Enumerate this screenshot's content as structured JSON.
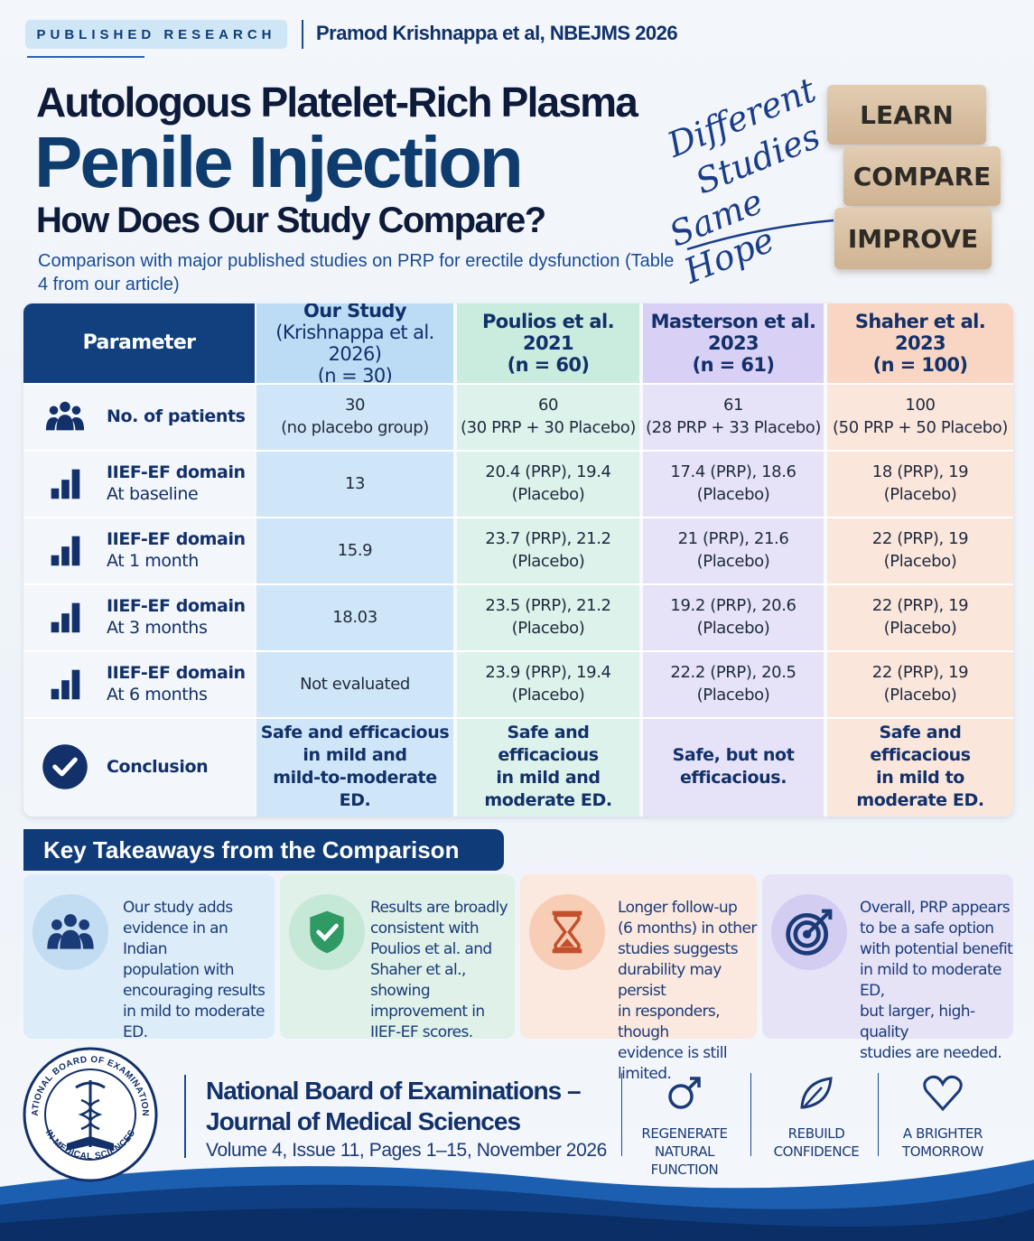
{
  "header": {
    "tag": "PUBLISHED RESEARCH",
    "author": "Pramod Krishnappa et al, NBEJMS 2026"
  },
  "title": {
    "line1": "Autologous Platelet-Rich Plasma",
    "line2": "Penile Injection",
    "line3": "How Does Our Study Compare?",
    "subtitle": "Comparison with major published studies on PRP for erectile dysfunction (Table 4 from our article)"
  },
  "script_text": [
    "Different",
    "Studies",
    "Same Hope"
  ],
  "blocks": [
    "LEARN",
    "COMPARE",
    "IMPROVE"
  ],
  "table": {
    "param_header": "Parameter",
    "columns": [
      {
        "l1": "Our Study",
        "l2": "(Krishnappa et al. 2026)",
        "l3": "(n = 30)",
        "color": "#cfe6f8",
        "hdr": "#bcdcf5"
      },
      {
        "l1": "Poulios et al.",
        "l2": "2021",
        "l3": "(n = 60)",
        "color": "#dcf2ea",
        "hdr": "#c9ecdf"
      },
      {
        "l1": "Masterson et al.",
        "l2": "2023",
        "l3": "(n = 61)",
        "color": "#e6e2f7",
        "hdr": "#d8d0f5"
      },
      {
        "l1": "Shaher et al.",
        "l2": "2023",
        "l3": "(n = 100)",
        "color": "#fbe6dc",
        "hdr": "#f9d6c4"
      }
    ],
    "rows": [
      {
        "icon": "people-icon",
        "title": "No. of patients",
        "sub": "",
        "cells": [
          [
            "30",
            "(no placebo group)"
          ],
          [
            "60",
            "(30 PRP + 30 Placebo)"
          ],
          [
            "61",
            "(28 PRP + 33 Placebo)"
          ],
          [
            "100",
            "(50 PRP + 50 Placebo)"
          ]
        ]
      },
      {
        "icon": "bar-chart-icon",
        "title": "IIEF-EF domain",
        "sub": "At baseline",
        "cells": [
          [
            "13",
            ""
          ],
          [
            "20.4 (PRP), 19.4",
            "(Placebo)"
          ],
          [
            "17.4 (PRP), 18.6",
            "(Placebo)"
          ],
          [
            "18 (PRP), 19",
            "(Placebo)"
          ]
        ]
      },
      {
        "icon": "bar-chart-icon",
        "title": "IIEF-EF domain",
        "sub": "At 1 month",
        "cells": [
          [
            "15.9",
            ""
          ],
          [
            "23.7 (PRP), 21.2",
            "(Placebo)"
          ],
          [
            "21 (PRP), 21.6",
            "(Placebo)"
          ],
          [
            "22 (PRP), 19",
            "(Placebo)"
          ]
        ]
      },
      {
        "icon": "bar-chart-icon",
        "title": "IIEF-EF domain",
        "sub": "At 3 months",
        "cells": [
          [
            "18.03",
            ""
          ],
          [
            "23.5 (PRP), 21.2",
            "(Placebo)"
          ],
          [
            "19.2 (PRP), 20.6",
            "(Placebo)"
          ],
          [
            "22 (PRP), 19",
            "(Placebo)"
          ]
        ]
      },
      {
        "icon": "bar-chart-icon",
        "title": "IIEF-EF domain",
        "sub": "At 6 months",
        "cells": [
          [
            "Not evaluated",
            ""
          ],
          [
            "23.9 (PRP), 19.4",
            "(Placebo)"
          ],
          [
            "22.2 (PRP), 20.5",
            "(Placebo)"
          ],
          [
            "22 (PRP), 19",
            "(Placebo)"
          ]
        ]
      },
      {
        "icon": "check-circle-icon",
        "title": "Conclusion",
        "sub": "",
        "cells": [
          [
            "Safe and efficacious",
            "in mild and",
            "mild-to-moderate ED."
          ],
          [
            "Safe and efficacious",
            "in mild and",
            "moderate ED."
          ],
          [
            "Safe, but not",
            "efficacious."
          ],
          [
            "Safe and efficacious",
            "in mild to",
            "moderate ED."
          ]
        ]
      }
    ]
  },
  "takeaways": {
    "title": "Key Takeaways from the Comparison",
    "cards": [
      {
        "icon": "people-icon",
        "bg": "#dcecf8",
        "iconbg": "#c2dcf2",
        "lines": [
          "Our study adds",
          "evidence in an Indian",
          "population with",
          "encouraging results",
          "in mild to moderate ED."
        ]
      },
      {
        "icon": "shield-check-icon",
        "bg": "#dff1e8",
        "iconbg": "#c6e8d7",
        "lines": [
          "Results are broadly",
          "consistent with",
          "Poulios et al. and",
          "Shaher et al., showing",
          "improvement in",
          "IIEF-EF scores."
        ]
      },
      {
        "icon": "hourglass-icon",
        "bg": "#fbe8de",
        "iconbg": "#f8cdb6",
        "lines": [
          "Longer follow-up",
          "(6 months) in other",
          "studies suggests",
          "durability may persist",
          "in responders, though",
          "evidence is still limited."
        ]
      },
      {
        "icon": "target-icon",
        "bg": "#e6e3f7",
        "iconbg": "#d4cdf2",
        "lines": [
          "Overall, PRP appears",
          "to be a safe option",
          "with potential benefit",
          "in mild to moderate ED,",
          "but larger, high-quality",
          "studies are needed."
        ]
      }
    ]
  },
  "footer": {
    "seal_top": "NATIONAL BOARD OF EXAMINATIONS",
    "seal_bottom": "IN MEDICAL SCIENCES",
    "journal_line1": "National Board of Examinations –",
    "journal_line2": "Journal of Medical Sciences",
    "volume": "Volume 4, Issue 11, Pages 1–15, November 2026",
    "features": [
      {
        "icon": "male-symbol-icon",
        "l1": "REGENERATE",
        "l2": "NATURAL FUNCTION"
      },
      {
        "icon": "leaf-icon",
        "l1": "REBUILD",
        "l2": "CONFIDENCE"
      },
      {
        "icon": "heart-icon",
        "l1": "A BRIGHTER",
        "l2": "TOMORROW"
      }
    ]
  },
  "colors": {
    "navy": "#0f3c78",
    "title_blue": "#0f3c6e",
    "accent": "#2a63b0"
  }
}
